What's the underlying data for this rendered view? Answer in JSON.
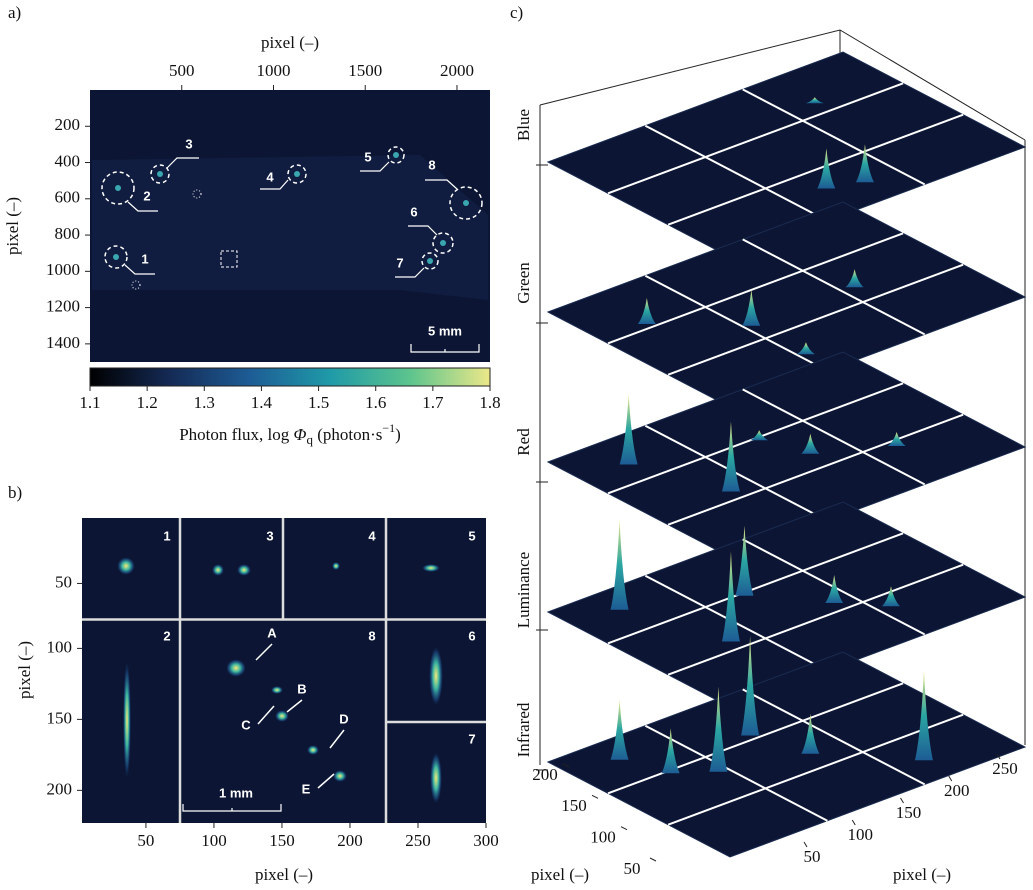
{
  "panel_a": {
    "label": "a)",
    "x_label": "pixel (–)",
    "y_label": "pixel (–)",
    "xlim": [
      0,
      2180
    ],
    "xticks": [
      500,
      1000,
      1500,
      2000
    ],
    "ylim": [
      0,
      1500
    ],
    "yticks": [
      200,
      400,
      600,
      800,
      1000,
      1200,
      1400
    ],
    "markers": [
      "1",
      "2",
      "3",
      "4",
      "5",
      "6",
      "7",
      "8"
    ],
    "scale_bar": "5 mm",
    "colorbar": {
      "lim": [
        1.1,
        1.8
      ],
      "ticks": [
        1.1,
        1.2,
        1.3,
        1.4,
        1.5,
        1.6,
        1.7,
        1.8
      ],
      "label": [
        "Photon flux, log ",
        "Φ",
        "q",
        " (photon·s",
        "−1",
        ")"
      ]
    }
  },
  "panel_b": {
    "label": "b)",
    "x_label": "pixel (–)",
    "y_label": "pixel (–)",
    "xlim": [
      3,
      300
    ],
    "xticks": [
      50,
      100,
      150,
      200,
      250,
      300
    ],
    "ylim_top": [
      4,
      75
    ],
    "yticks_top": [
      50
    ],
    "ylim": [
      80,
      223
    ],
    "yticks": [
      100,
      150,
      200
    ],
    "subpanels": [
      "1",
      "3",
      "4",
      "5",
      "2",
      "8",
      "6",
      "7"
    ],
    "features": [
      "A",
      "B",
      "C",
      "D",
      "E"
    ],
    "scale_bar": "1 mm"
  },
  "panel_c": {
    "label": "c)",
    "layers": [
      "Blue",
      "Green",
      "Red",
      "Luminance",
      "Infrared"
    ],
    "y_label": "pixel (–)",
    "ylim": [
      0,
      240
    ],
    "yticks": [
      50,
      100,
      150,
      200
    ],
    "x_label": "pixel (–)",
    "xlim": [
      0,
      280
    ],
    "xticks": [
      50,
      100,
      150,
      200,
      250
    ]
  }
}
